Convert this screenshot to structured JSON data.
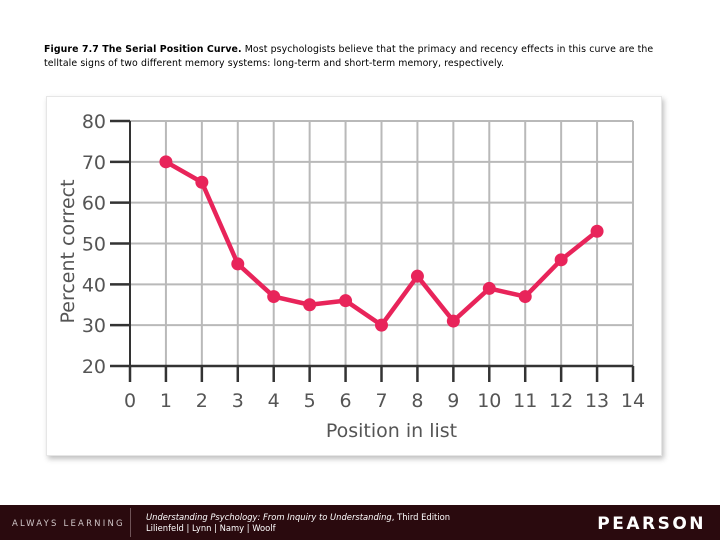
{
  "caption": {
    "label": "Figure 7.7   The Serial Position Curve.",
    "text": " Most psychologists believe that the primacy and recency effects in this curve are the telltale signs of two different memory systems: long-term and short-term memory, respectively."
  },
  "chart_data": {
    "type": "line",
    "title": "",
    "xlabel": "Position in list",
    "ylabel": "Percent correct",
    "xlim": [
      0,
      14
    ],
    "ylim": [
      20,
      80
    ],
    "x_ticks": [
      "0",
      "1",
      "2",
      "3",
      "4",
      "5",
      "6",
      "7",
      "8",
      "9",
      "10",
      "11",
      "12",
      "13",
      "14"
    ],
    "y_ticks": [
      "80",
      "70",
      "60",
      "50",
      "40",
      "30",
      "20"
    ],
    "grid": true,
    "series": [
      {
        "x": [
          1,
          2,
          3,
          4,
          5,
          6,
          7,
          8,
          9,
          10,
          11,
          12,
          13
        ],
        "values": [
          70,
          65,
          45,
          37,
          35,
          36,
          30,
          42,
          31,
          39,
          37,
          46,
          53
        ]
      }
    ],
    "colors": {
      "line": "#e8245a",
      "grid": "#b9b9b9",
      "axis": "#333333",
      "text": "#555555"
    }
  },
  "footer": {
    "tagline": "ALWAYS LEARNING",
    "book_title": "Understanding Psychology: From Inquiry to Understanding",
    "edition": ", Third Edition",
    "authors": "Lilienfeld | Lynn | Namy | Woolf",
    "logo": "PEARSON"
  }
}
